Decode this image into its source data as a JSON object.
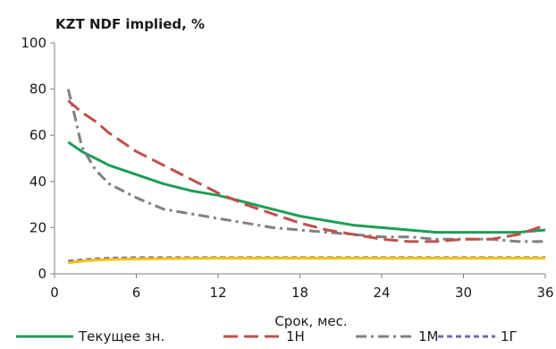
{
  "chart_data": {
    "type": "line",
    "title": "KZT NDF implied, %",
    "xlabel": "Срок, мес.",
    "ylabel": "",
    "xlim": [
      0,
      36
    ],
    "ylim": [
      0,
      100
    ],
    "x_ticks": [
      0,
      6,
      12,
      18,
      24,
      30,
      36
    ],
    "y_ticks": [
      0,
      20,
      40,
      60,
      80,
      100
    ],
    "grid": false,
    "legend_position": "bottom",
    "series": [
      {
        "name": "Текущее зн.",
        "color": "#1e9e57",
        "dash": "solid",
        "x": [
          1,
          2,
          3,
          4,
          6,
          8,
          10,
          12,
          14,
          16,
          18,
          20,
          22,
          24,
          26,
          28,
          30,
          32,
          34,
          36
        ],
        "y": [
          57,
          53,
          50,
          47,
          43,
          39,
          36,
          34,
          31,
          28,
          25,
          23,
          21,
          20,
          19,
          18,
          18,
          18,
          18,
          19
        ]
      },
      {
        "name": "1Н",
        "color": "#c0504d",
        "dash": "long-dash",
        "x": [
          1,
          2,
          3,
          4,
          6,
          8,
          10,
          12,
          14,
          16,
          18,
          20,
          22,
          24,
          26,
          28,
          30,
          32,
          34,
          36
        ],
        "y": [
          75,
          70,
          66,
          61,
          53,
          47,
          41,
          35,
          30,
          26,
          22,
          19,
          17,
          15,
          14,
          14,
          15,
          15,
          17,
          21
        ]
      },
      {
        "name": "1М",
        "color": "#808080",
        "dash": "dash-dot",
        "x": [
          1,
          1.5,
          2,
          3,
          4,
          6,
          8,
          10,
          12,
          14,
          16,
          18,
          20,
          22,
          24,
          26,
          28,
          30,
          32,
          34,
          36
        ],
        "y": [
          80,
          68,
          55,
          45,
          39,
          33,
          28,
          26,
          24,
          22,
          20,
          19,
          18,
          17,
          16,
          16,
          15,
          15,
          15,
          14,
          14
        ]
      },
      {
        "name": "1Г",
        "color": "#7766b3",
        "dash": "short-dash",
        "x": [
          1,
          2,
          3,
          4,
          6,
          8,
          10,
          12,
          14,
          16,
          18,
          20,
          22,
          24,
          26,
          28,
          30,
          32,
          34,
          36
        ],
        "y": [
          5.5,
          6,
          6.5,
          6.8,
          7,
          7,
          7,
          7,
          7,
          7,
          7,
          7,
          7,
          7,
          7,
          7,
          7,
          7,
          7,
          7
        ]
      },
      {
        "name": "",
        "color": "#f2c200",
        "dash": "solid",
        "x": [
          1,
          2,
          3,
          4,
          6,
          8,
          10,
          12,
          14,
          16,
          18,
          20,
          22,
          24,
          26,
          28,
          30,
          32,
          34,
          36
        ],
        "y": [
          4.8,
          5.5,
          6,
          6.2,
          6.5,
          6.6,
          6.7,
          6.8,
          6.8,
          6.8,
          6.8,
          6.8,
          6.8,
          6.8,
          6.8,
          6.8,
          6.8,
          6.8,
          6.8,
          6.8
        ]
      }
    ]
  }
}
